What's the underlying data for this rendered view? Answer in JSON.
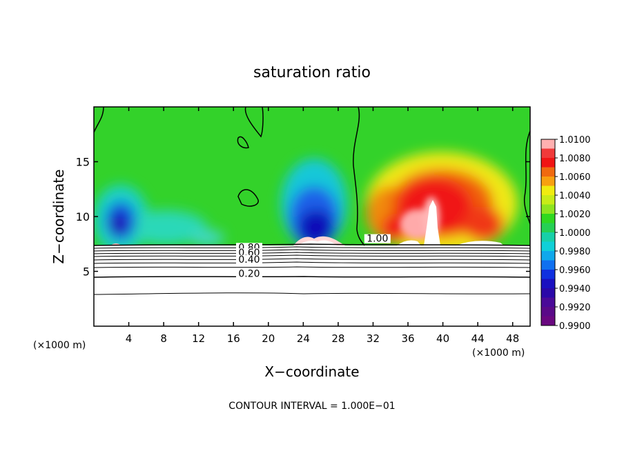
{
  "chart_data": {
    "type": "heatmap",
    "title": "saturation ratio",
    "xlabel": "X−coordinate",
    "ylabel": "Z−coordinate",
    "x_unit_left": "(×1000 m)",
    "x_unit_right": "(×1000 m)",
    "footer": "CONTOUR INTERVAL = 1.000E−01",
    "xlim": [
      0,
      50
    ],
    "ylim": [
      0,
      20
    ],
    "x_ticks": [
      4,
      8,
      12,
      16,
      20,
      24,
      28,
      32,
      36,
      40,
      44,
      48
    ],
    "y_ticks": [
      5,
      10,
      15
    ],
    "colorbar": {
      "labels": [
        "1.0100",
        "1.0080",
        "1.0060",
        "1.0040",
        "1.0020",
        "1.0000",
        "0.9980",
        "0.9960",
        "0.9940",
        "0.9920",
        "0.9900"
      ],
      "range": [
        0.99,
        1.01
      ]
    },
    "contour_labels": [
      {
        "text": "1.00",
        "x": 32.5,
        "y": 7.7
      },
      {
        "text": "0.80",
        "x": 17.8,
        "y": 6.9
      },
      {
        "text": "0.60",
        "x": 17.8,
        "y": 6.4
      },
      {
        "text": "0.40",
        "x": 17.8,
        "y": 5.8
      },
      {
        "text": "0.20",
        "x": 17.8,
        "y": 4.5
      }
    ],
    "colors": {
      "low": "#3a0a9a",
      "mid": "#22c81e",
      "high": "#ff1a1a",
      "max": "#ffaaaa"
    }
  }
}
